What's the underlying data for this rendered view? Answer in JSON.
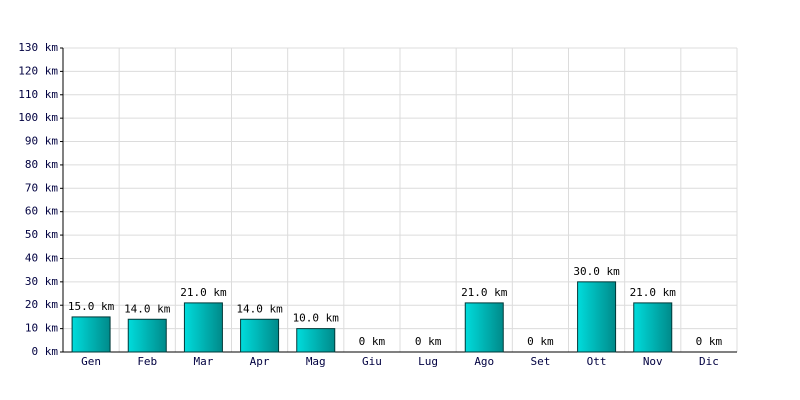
{
  "chart_data": {
    "type": "bar",
    "categories": [
      "Gen",
      "Feb",
      "Mar",
      "Apr",
      "Mag",
      "Giu",
      "Lug",
      "Ago",
      "Set",
      "Ott",
      "Nov",
      "Dic"
    ],
    "values": [
      15,
      14,
      21,
      14,
      10,
      0,
      0,
      21,
      0,
      30,
      21,
      0
    ],
    "value_labels": [
      "15.0 km",
      "14.0 km",
      "21.0 km",
      "14.0 km",
      "10.0 km",
      "0 km",
      "0 km",
      "21.0 km",
      "0 km",
      "30.0 km",
      "21.0 km",
      "0 km"
    ],
    "color": "#00dcdc",
    "ylim": [
      0,
      130
    ],
    "yticks": [
      {
        "value": 0,
        "label": "0 km"
      },
      {
        "value": 10,
        "label": "10 km"
      },
      {
        "value": 20,
        "label": "20 km"
      },
      {
        "value": 30,
        "label": "30 km"
      },
      {
        "value": 40,
        "label": "40 km"
      },
      {
        "value": 50,
        "label": "50 km"
      },
      {
        "value": 60,
        "label": "60 km"
      },
      {
        "value": 70,
        "label": "70 km"
      },
      {
        "value": 80,
        "label": "80 km"
      },
      {
        "value": 90,
        "label": "90 km"
      },
      {
        "value": 100,
        "label": "100 km"
      },
      {
        "value": 110,
        "label": "110 km"
      },
      {
        "value": 120,
        "label": "120 km"
      },
      {
        "value": 130,
        "label": "130 km"
      }
    ],
    "grid": true
  }
}
